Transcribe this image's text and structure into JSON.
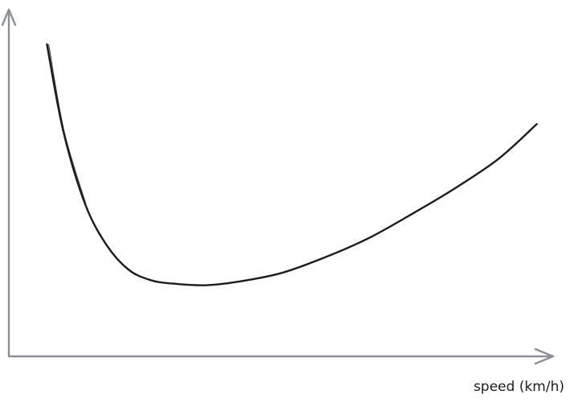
{
  "chart_data": {
    "type": "line",
    "title": "",
    "xlabel": "speed (km/h)",
    "ylabel": "",
    "x_ticks": [],
    "y_ticks": [],
    "grid": false,
    "legend": "none",
    "xlim": [
      0,
      100
    ],
    "ylim": [
      0,
      100
    ],
    "series": [
      {
        "x": [
          7,
          10,
          14,
          18,
          22,
          26,
          30,
          36,
          42,
          50,
          58,
          66,
          74,
          82,
          90,
          97
        ],
        "y": [
          90,
          65,
          44,
          32,
          25,
          22,
          21,
          20.5,
          21.5,
          24,
          28.5,
          34,
          41,
          48.5,
          57,
          67
        ]
      }
    ]
  },
  "colors": {
    "axis": "#8b9097",
    "curve": "#1c1c1c"
  }
}
